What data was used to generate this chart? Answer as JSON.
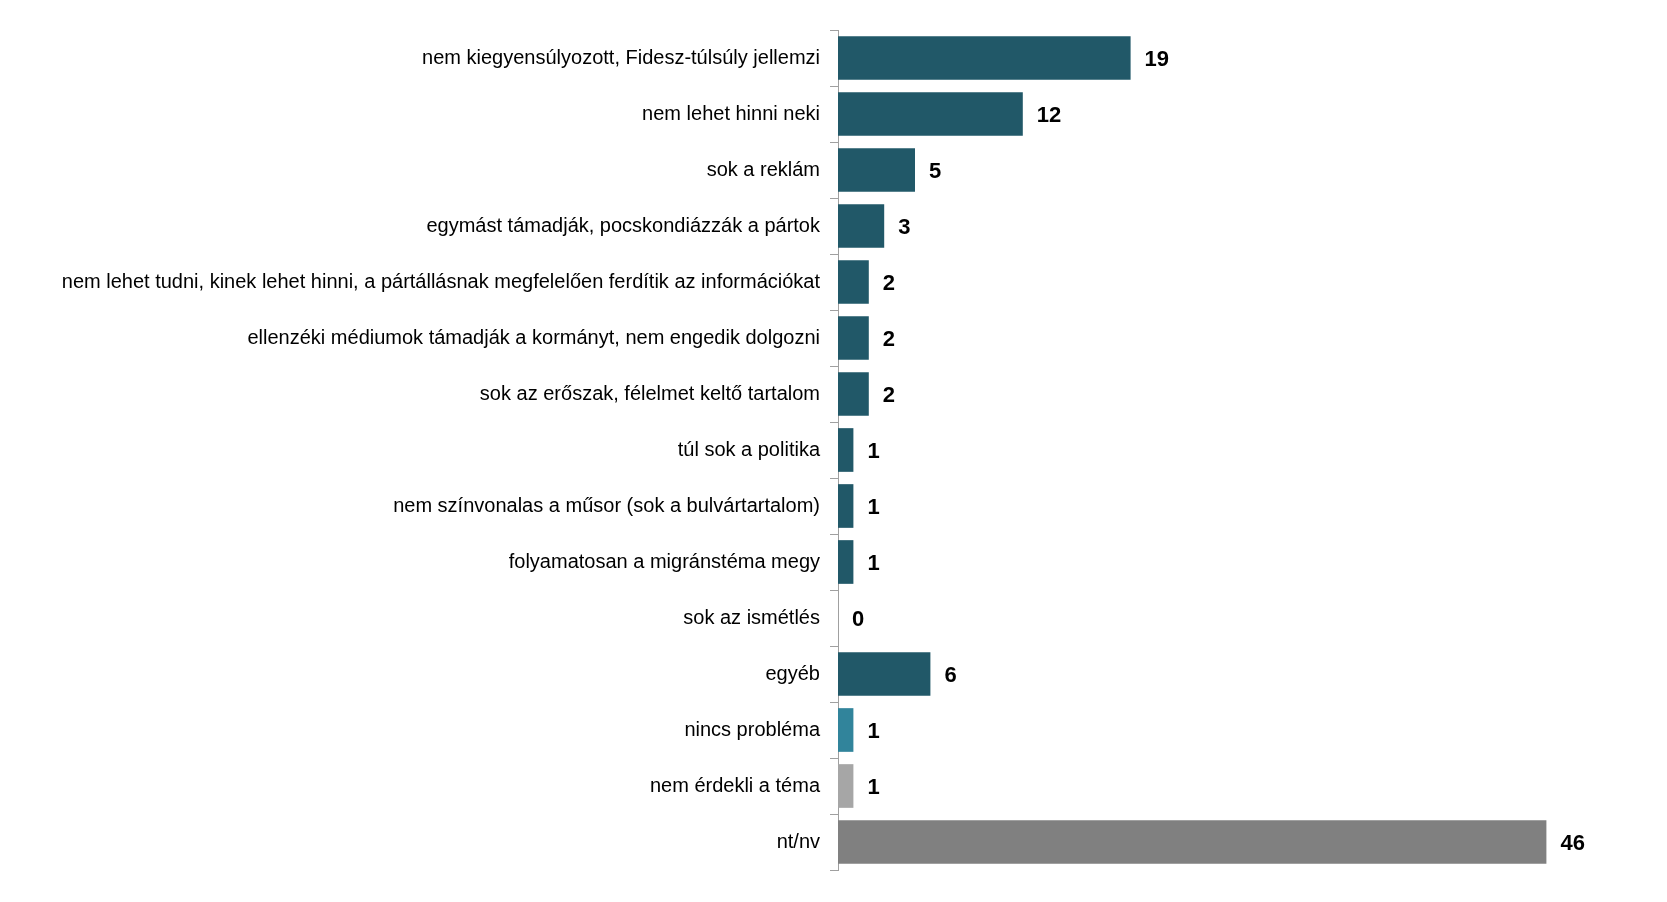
{
  "chart_data": {
    "type": "bar",
    "orientation": "horizontal",
    "categories": [
      "nem kiegyensúlyozott, Fidesz-túlsúly jellemzi",
      "nem lehet hinni neki",
      "sok a reklám",
      "egymást támadják, pocskondiázzák a pártok",
      "nem lehet tudni, kinek lehet hinni, a pártállásnak megfelelően ferdítik az információkat",
      "ellenzéki médiumok támadják a kormányt, nem engedik dolgozni",
      "sok az erőszak, félelmet keltő tartalom",
      "túl sok a politika",
      "nem színvonalas a műsor (sok a bulvártartalom)",
      "folyamatosan a migránstéma megy",
      "sok az ismétlés",
      "egyéb",
      "nincs probléma",
      "nem érdekli a téma",
      "nt/nv"
    ],
    "values": [
      19,
      12,
      5,
      3,
      2,
      2,
      2,
      1,
      1,
      1,
      0,
      6,
      1,
      1,
      46
    ],
    "colors": [
      "#215868",
      "#215868",
      "#215868",
      "#215868",
      "#215868",
      "#215868",
      "#215868",
      "#215868",
      "#215868",
      "#215868",
      "#215868",
      "#215868",
      "#31849b",
      "#a6a6a6",
      "#808080"
    ],
    "data_labels": true,
    "legend": false
  }
}
